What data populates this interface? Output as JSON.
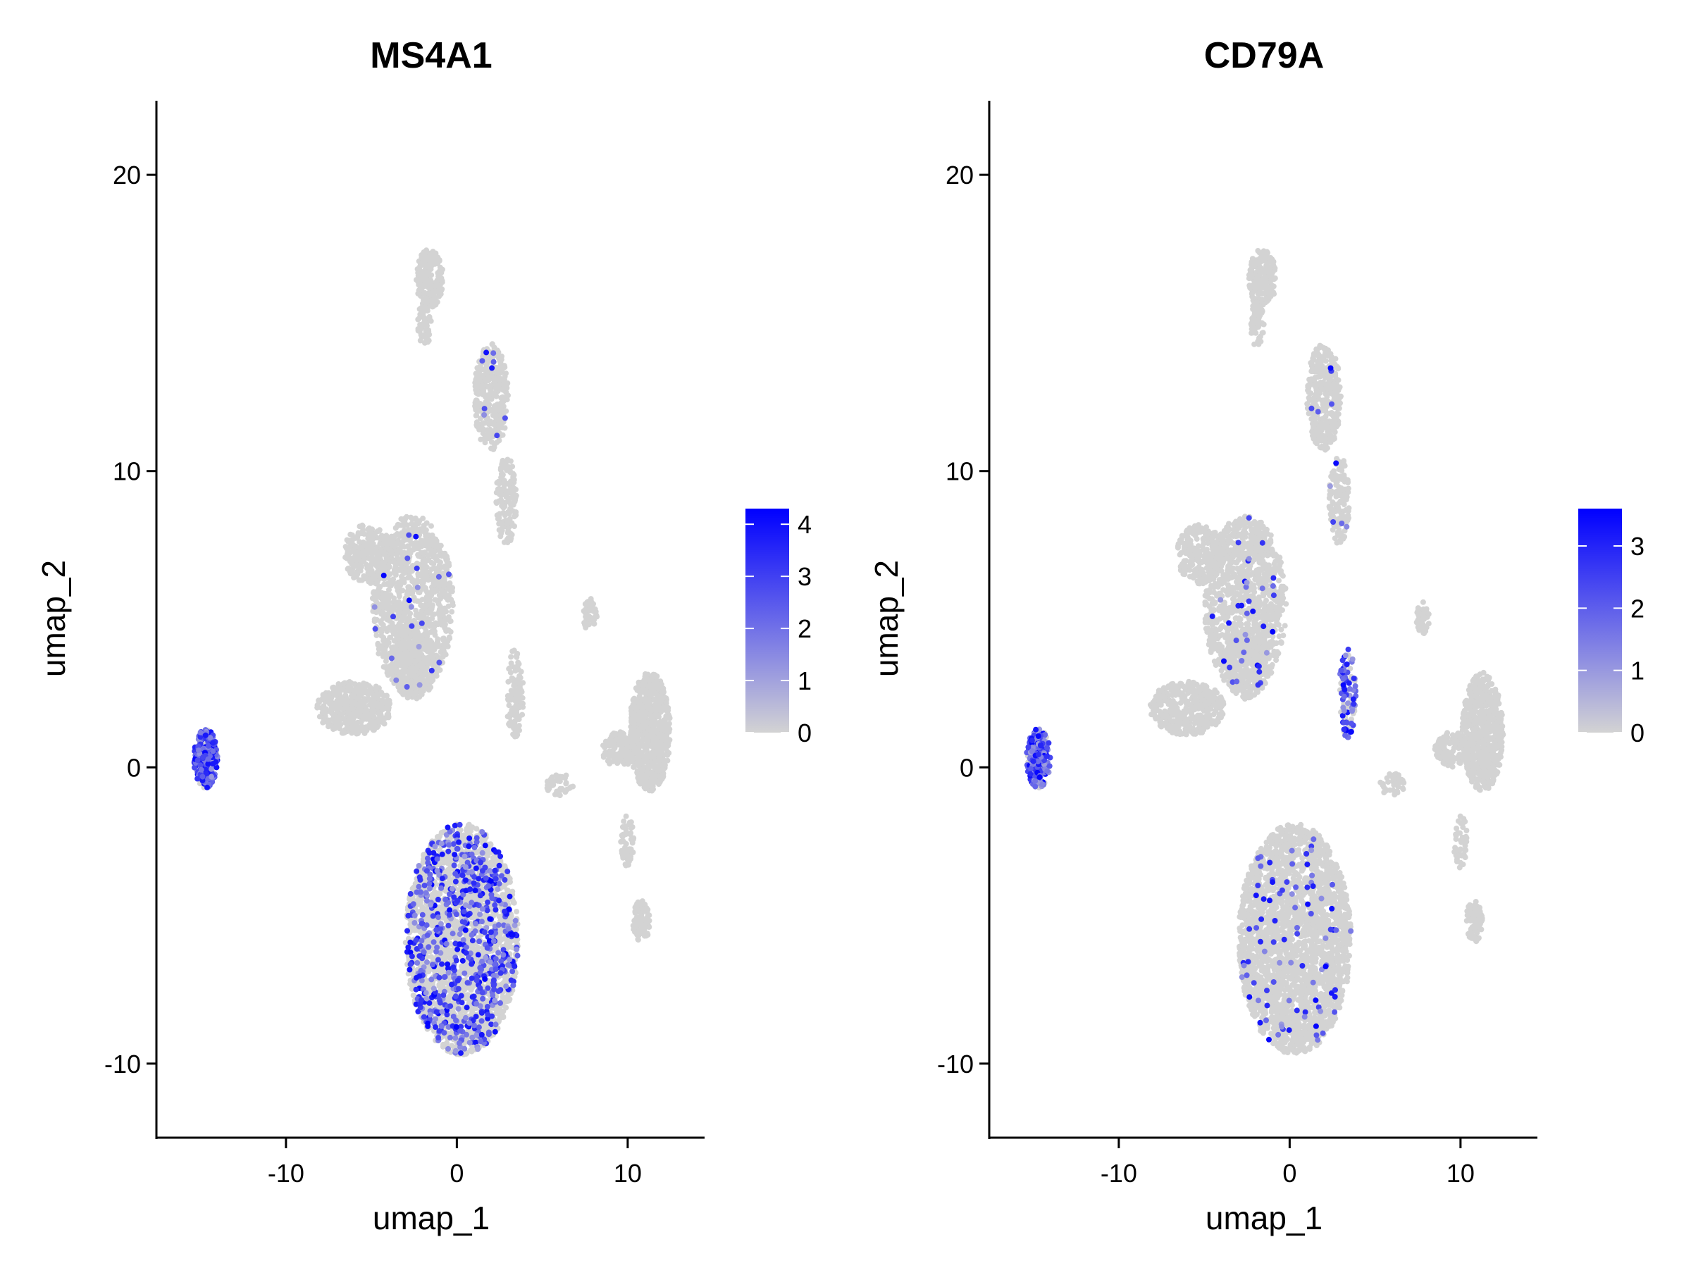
{
  "chart_data": [
    {
      "type": "scatter",
      "title": "MS4A1",
      "xlabel": "umap_1",
      "ylabel": "umap_2",
      "xlim": [
        -17.5,
        14.5
      ],
      "ylim": [
        -12.5,
        22.5
      ],
      "xticks": [
        -10,
        0,
        10
      ],
      "yticks": [
        -10,
        0,
        10,
        20
      ],
      "grid": false,
      "legend_position": "right",
      "colorbar": {
        "min": 0,
        "max": 4.3,
        "ticks": [
          0,
          1,
          2,
          3,
          4
        ],
        "low_color": "#d3d3d3",
        "high_color": "#0000ff"
      },
      "clusters": [
        {
          "cx": 0.3,
          "cy": -5.8,
          "rx": 3.3,
          "ry": 3.9,
          "n": 2600,
          "expr": 0.25
        },
        {
          "cx": -2.6,
          "cy": 5.5,
          "rx": 2.4,
          "ry": 3.0,
          "n": 1100,
          "expr": 0.02
        },
        {
          "cx": -5.2,
          "cy": 7.2,
          "rx": 1.4,
          "ry": 1.0,
          "n": 260,
          "expr": 0.0
        },
        {
          "cx": -6.0,
          "cy": 2.0,
          "rx": 2.2,
          "ry": 0.9,
          "n": 420,
          "expr": 0.0
        },
        {
          "cx": -2.5,
          "cy": 3.5,
          "rx": 1.3,
          "ry": 1.2,
          "n": 300,
          "expr": 0.0
        },
        {
          "cx": 2.0,
          "cy": 12.5,
          "rx": 1.0,
          "ry": 1.8,
          "n": 360,
          "expr": 0.02
        },
        {
          "cx": 2.9,
          "cy": 9.0,
          "rx": 0.6,
          "ry": 1.5,
          "n": 150,
          "expr": 0.0
        },
        {
          "cx": -1.6,
          "cy": 16.5,
          "rx": 0.8,
          "ry": 1.0,
          "n": 180,
          "expr": 0.0
        },
        {
          "cx": -1.9,
          "cy": 15.0,
          "rx": 0.4,
          "ry": 0.8,
          "n": 60,
          "expr": 0.0
        },
        {
          "cx": 11.3,
          "cy": 1.2,
          "rx": 1.2,
          "ry": 2.0,
          "n": 700,
          "expr": 0.0
        },
        {
          "cx": 9.5,
          "cy": 0.6,
          "rx": 1.0,
          "ry": 0.6,
          "n": 120,
          "expr": 0.0
        },
        {
          "cx": 10.8,
          "cy": -5.2,
          "rx": 0.5,
          "ry": 0.7,
          "n": 90,
          "expr": 0.0
        },
        {
          "cx": 10.0,
          "cy": -2.5,
          "rx": 0.4,
          "ry": 0.9,
          "n": 50,
          "expr": 0.0
        },
        {
          "cx": 3.4,
          "cy": 2.5,
          "rx": 0.5,
          "ry": 1.5,
          "n": 110,
          "expr": 0.0
        },
        {
          "cx": 7.8,
          "cy": 5.1,
          "rx": 0.4,
          "ry": 0.6,
          "n": 50,
          "expr": 0.0
        },
        {
          "cx": 6.0,
          "cy": -0.6,
          "rx": 0.8,
          "ry": 0.4,
          "n": 40,
          "expr": 0.0
        },
        {
          "cx": -14.7,
          "cy": 0.3,
          "rx": 0.7,
          "ry": 1.0,
          "n": 260,
          "expr": 0.75
        }
      ]
    },
    {
      "type": "scatter",
      "title": "CD79A",
      "xlabel": "umap_1",
      "ylabel": "umap_2",
      "xlim": [
        -17.5,
        14.5
      ],
      "ylim": [
        -12.5,
        22.5
      ],
      "xticks": [
        -10,
        0,
        10
      ],
      "yticks": [
        -10,
        0,
        10,
        20
      ],
      "grid": false,
      "legend_position": "right",
      "colorbar": {
        "min": 0,
        "max": 3.6,
        "ticks": [
          0,
          1,
          2,
          3
        ],
        "low_color": "#d3d3d3",
        "high_color": "#0000ff"
      },
      "clusters": [
        {
          "cx": 0.3,
          "cy": -5.8,
          "rx": 3.3,
          "ry": 3.9,
          "n": 2600,
          "expr": 0.03
        },
        {
          "cx": -2.6,
          "cy": 5.5,
          "rx": 2.4,
          "ry": 3.0,
          "n": 1100,
          "expr": 0.03
        },
        {
          "cx": -5.2,
          "cy": 7.2,
          "rx": 1.4,
          "ry": 1.0,
          "n": 260,
          "expr": 0.0
        },
        {
          "cx": -6.0,
          "cy": 2.0,
          "rx": 2.2,
          "ry": 0.9,
          "n": 420,
          "expr": 0.0
        },
        {
          "cx": -2.5,
          "cy": 3.5,
          "rx": 1.3,
          "ry": 1.2,
          "n": 300,
          "expr": 0.02
        },
        {
          "cx": 2.0,
          "cy": 12.5,
          "rx": 1.0,
          "ry": 1.8,
          "n": 360,
          "expr": 0.02
        },
        {
          "cx": 2.9,
          "cy": 9.0,
          "rx": 0.6,
          "ry": 1.5,
          "n": 150,
          "expr": 0.02
        },
        {
          "cx": -1.6,
          "cy": 16.5,
          "rx": 0.8,
          "ry": 1.0,
          "n": 180,
          "expr": 0.0
        },
        {
          "cx": -1.9,
          "cy": 15.0,
          "rx": 0.4,
          "ry": 0.8,
          "n": 60,
          "expr": 0.02
        },
        {
          "cx": 11.3,
          "cy": 1.2,
          "rx": 1.2,
          "ry": 2.0,
          "n": 700,
          "expr": 0.0
        },
        {
          "cx": 9.5,
          "cy": 0.6,
          "rx": 1.0,
          "ry": 0.6,
          "n": 120,
          "expr": 0.0
        },
        {
          "cx": 10.8,
          "cy": -5.2,
          "rx": 0.5,
          "ry": 0.7,
          "n": 90,
          "expr": 0.0
        },
        {
          "cx": 10.0,
          "cy": -2.5,
          "rx": 0.4,
          "ry": 0.9,
          "n": 50,
          "expr": 0.0
        },
        {
          "cx": 3.4,
          "cy": 2.5,
          "rx": 0.5,
          "ry": 1.5,
          "n": 110,
          "expr": 0.6
        },
        {
          "cx": 7.8,
          "cy": 5.1,
          "rx": 0.4,
          "ry": 0.6,
          "n": 50,
          "expr": 0.0
        },
        {
          "cx": 6.0,
          "cy": -0.6,
          "rx": 0.8,
          "ry": 0.4,
          "n": 40,
          "expr": 0.0
        },
        {
          "cx": -14.7,
          "cy": 0.3,
          "rx": 0.7,
          "ry": 1.0,
          "n": 260,
          "expr": 0.85
        }
      ]
    }
  ]
}
